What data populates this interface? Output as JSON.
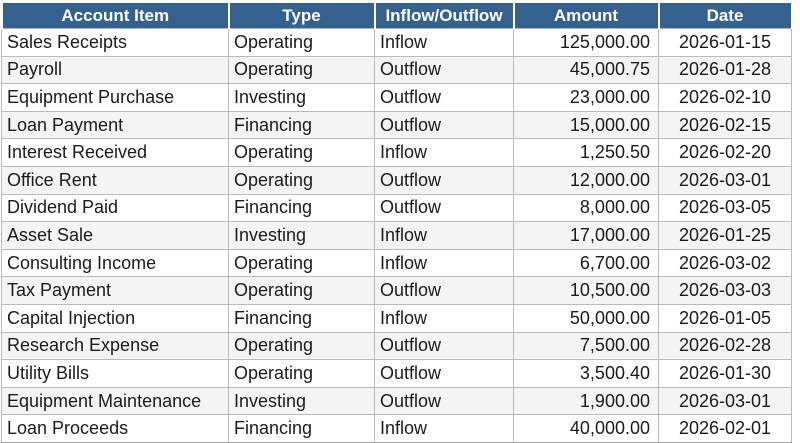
{
  "chart_data": {
    "type": "table",
    "columns": [
      "Account Item",
      "Type",
      "Inflow/Outflow",
      "Amount",
      "Date"
    ],
    "rows": [
      [
        "Sales Receipts",
        "Operating",
        "Inflow",
        "125,000.00",
        "2026-01-15"
      ],
      [
        "Payroll",
        "Operating",
        "Outflow",
        "45,000.75",
        "2026-01-28"
      ],
      [
        "Equipment Purchase",
        "Investing",
        "Outflow",
        "23,000.00",
        "2026-02-10"
      ],
      [
        "Loan Payment",
        "Financing",
        "Outflow",
        "15,000.00",
        "2026-02-15"
      ],
      [
        "Interest Received",
        "Operating",
        "Inflow",
        "1,250.50",
        "2026-02-20"
      ],
      [
        "Office Rent",
        "Operating",
        "Outflow",
        "12,000.00",
        "2026-03-01"
      ],
      [
        "Dividend Paid",
        "Financing",
        "Outflow",
        "8,000.00",
        "2026-03-05"
      ],
      [
        "Asset Sale",
        "Investing",
        "Inflow",
        "17,000.00",
        "2026-01-25"
      ],
      [
        "Consulting Income",
        "Operating",
        "Inflow",
        "6,700.00",
        "2026-03-02"
      ],
      [
        "Tax Payment",
        "Operating",
        "Outflow",
        "10,500.00",
        "2026-03-03"
      ],
      [
        "Capital Injection",
        "Financing",
        "Inflow",
        "50,000.00",
        "2026-01-05"
      ],
      [
        "Research Expense",
        "Operating",
        "Outflow",
        "7,500.00",
        "2026-02-28"
      ],
      [
        "Utility Bills",
        "Operating",
        "Outflow",
        "3,500.40",
        "2026-01-30"
      ],
      [
        "Equipment Maintenance",
        "Investing",
        "Outflow",
        "1,900.00",
        "2026-03-01"
      ],
      [
        "Loan Proceeds",
        "Financing",
        "Inflow",
        "40,000.00",
        "2026-02-01"
      ]
    ]
  },
  "colors": {
    "header_bg": "#35618E",
    "header_text": "#FFFFFF",
    "row_stripe": "#F4F4F4",
    "gridline": "#BBBBBB",
    "bottom_border": "#A5A5A5"
  }
}
